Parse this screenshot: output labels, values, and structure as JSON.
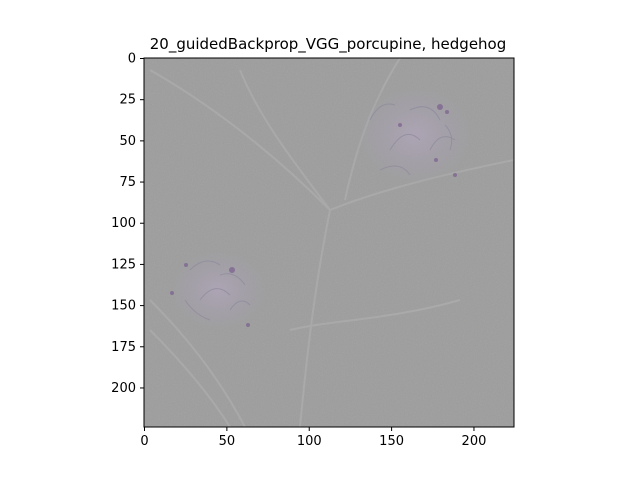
{
  "title": "20_guidedBackprop_VGG_porcupine, hedgehog",
  "axes": {
    "x_ticks": [
      0,
      50,
      100,
      150,
      200
    ],
    "y_ticks": [
      0,
      25,
      50,
      75,
      100,
      125,
      150,
      175,
      200
    ],
    "xlim": [
      0,
      224
    ],
    "ylim_inverted": [
      224,
      0
    ]
  },
  "image": {
    "description_free": true,
    "background_color": "#9d9d9d"
  }
}
